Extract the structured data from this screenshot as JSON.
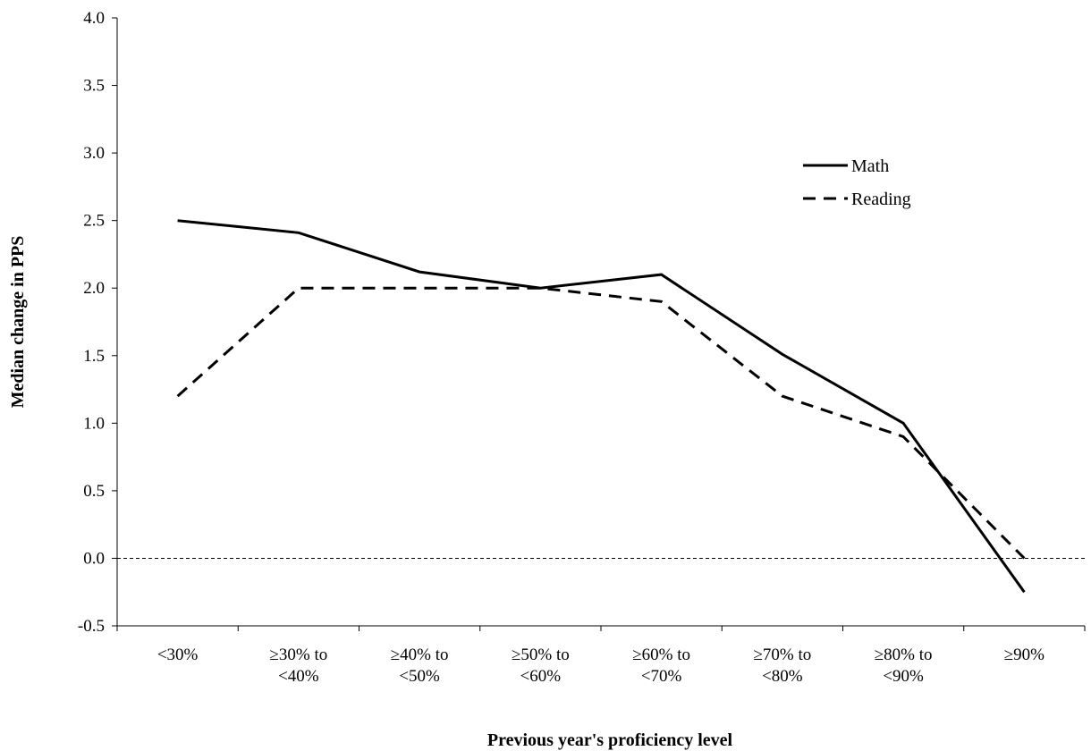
{
  "chart_data": {
    "type": "line",
    "xlabel": "Previous year's proficiency level",
    "ylabel": "Median change in PPS",
    "categories": [
      [
        "<30%"
      ],
      [
        "≥30% to",
        "<40%"
      ],
      [
        "≥40% to",
        "<50%"
      ],
      [
        "≥50% to",
        "<60%"
      ],
      [
        "≥60% to",
        "<70%"
      ],
      [
        "≥70% to",
        "<80%"
      ],
      [
        "≥80% to",
        "<90%"
      ],
      [
        "≥90%"
      ]
    ],
    "ylim": [
      -0.5,
      4.0
    ],
    "yticks": [
      "-0.5",
      "0.0",
      "0.5",
      "1.0",
      "1.5",
      "2.0",
      "2.5",
      "3.0",
      "3.5",
      "4.0"
    ],
    "grid": false,
    "reference_line": 0.0,
    "legend_position": "upper-right",
    "series": [
      {
        "name": "Math",
        "style": "solid",
        "color": "#000000",
        "values": [
          2.5,
          2.41,
          2.12,
          2.0,
          2.1,
          1.51,
          1.0,
          -0.25
        ]
      },
      {
        "name": "Reading",
        "style": "dashed",
        "color": "#000000",
        "values": [
          1.2,
          2.0,
          2.0,
          2.0,
          1.9,
          1.2,
          0.9,
          0.0
        ]
      }
    ]
  }
}
